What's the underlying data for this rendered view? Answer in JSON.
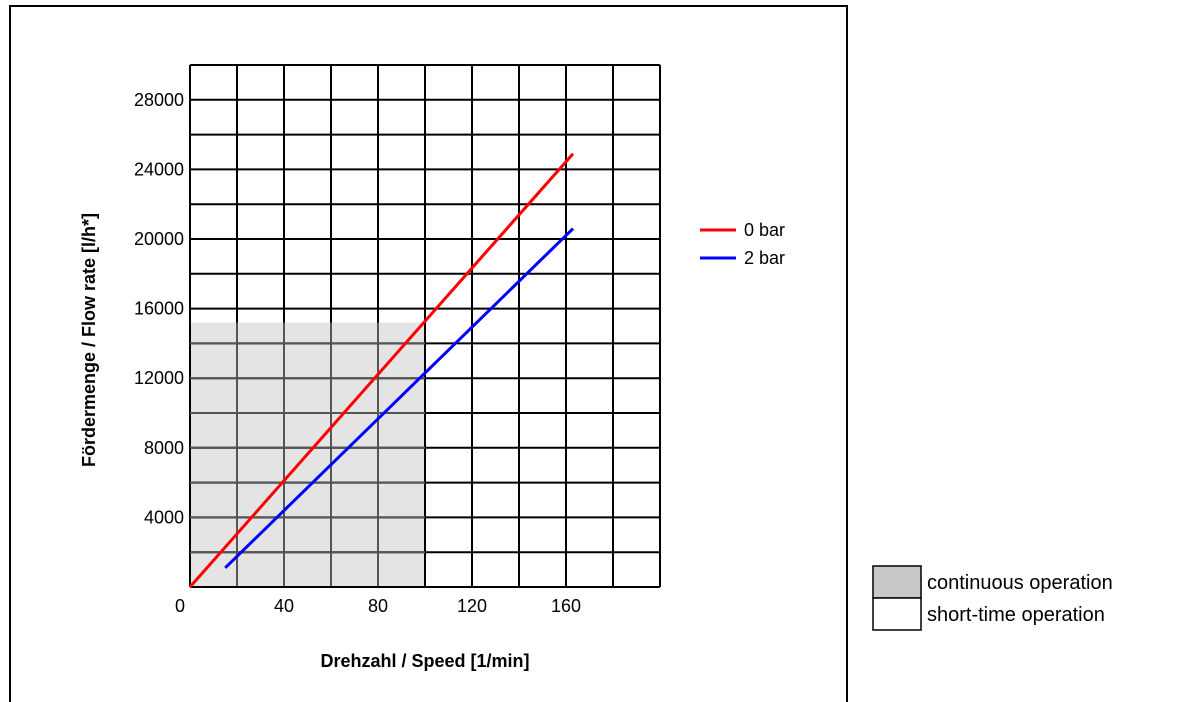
{
  "chart_data": {
    "type": "line",
    "title": "",
    "xlabel": "Drehzahl / Speed [1/min]",
    "ylabel": "Fördermenge / Flow rate [l/h*]",
    "xlim": [
      0,
      200
    ],
    "ylim": [
      0,
      30000
    ],
    "x_grid_step": 20,
    "y_grid_step": 2000,
    "xticks": [
      0,
      40,
      80,
      120,
      160
    ],
    "yticks": [
      4000,
      8000,
      12000,
      16000,
      20000,
      24000,
      28000
    ],
    "grid": true,
    "legend_position": "right",
    "series": [
      {
        "name": "0 bar",
        "color": "#ff0000",
        "x": [
          0,
          163
        ],
        "y": [
          0,
          24900
        ]
      },
      {
        "name": "2 bar",
        "color": "#0000ff",
        "x": [
          15,
          163
        ],
        "y": [
          1100,
          20600
        ]
      }
    ],
    "regions": [
      {
        "name": "continuous operation",
        "color": "#c8c8c8",
        "x": [
          0,
          100
        ],
        "y": [
          0,
          15200
        ]
      },
      {
        "name": "short-time operation",
        "color": "#ffffff"
      }
    ]
  }
}
